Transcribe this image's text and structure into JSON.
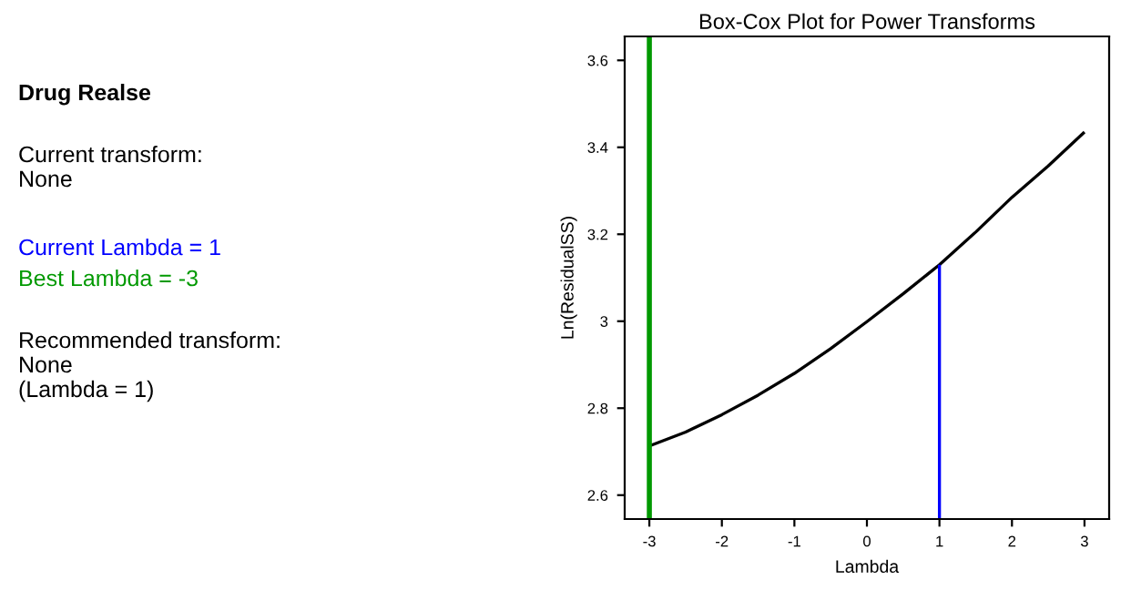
{
  "chart_data": {
    "type": "line",
    "title": "Box-Cox Plot for Power Transforms",
    "subtitle": "Drug Realse",
    "xlabel": "Lambda",
    "ylabel": "Ln(ResidualSS)",
    "xlim": [
      -3.34,
      3.34
    ],
    "xticks": [
      -3,
      -2,
      -1,
      0,
      1,
      2,
      3
    ],
    "ylim": [
      2.545,
      3.655
    ],
    "yticks": [
      2.6,
      2.8,
      3,
      3.2,
      3.4,
      3.6
    ],
    "series": [
      {
        "type": "line",
        "color": "#000000",
        "x": [
          -3,
          -2.5,
          -2,
          -1.5,
          -1,
          -0.5,
          0,
          0.5,
          1,
          1.5,
          2,
          2.5,
          3
        ],
        "values": [
          2.713,
          2.745,
          2.785,
          2.83,
          2.88,
          2.937,
          2.999,
          3.063,
          3.13,
          3.205,
          3.285,
          3.357,
          3.435
        ]
      },
      {
        "type": "line",
        "name": "Current Lambda = 1",
        "color": "#0000ff",
        "x": [
          1,
          1
        ],
        "values": [
          2.545,
          3.13
        ]
      }
    ],
    "ref_lines": [
      {
        "axis": "x",
        "value": -3,
        "color": "#009900",
        "label": "Best Lambda = -3"
      }
    ],
    "grid": false,
    "annotations": [
      "Current transform:\nNone",
      "Recommended transform:\nNone\n(Lambda = 1)"
    ]
  }
}
